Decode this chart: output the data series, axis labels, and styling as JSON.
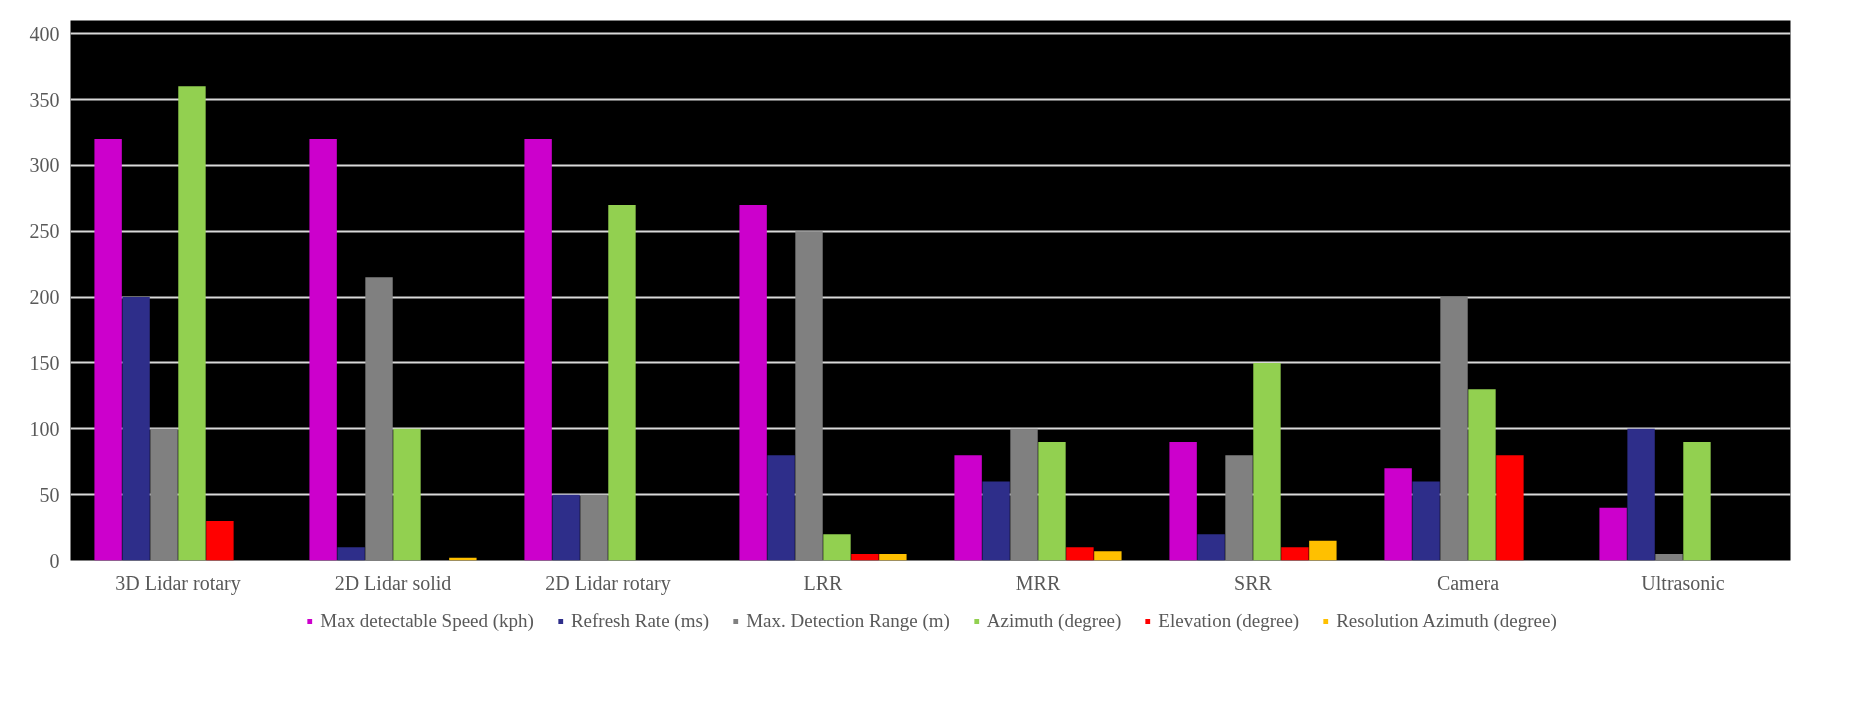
{
  "chart_data": {
    "type": "bar",
    "categories": [
      "3D Lidar rotary",
      "2D Lidar solid",
      "2D Lidar rotary",
      "LRR",
      "MRR",
      "SRR",
      "Camera",
      "Ultrasonic"
    ],
    "series": [
      {
        "name": "Max detectable Speed (kph)",
        "color": "#cc00cc",
        "values": [
          320,
          320,
          320,
          270,
          80,
          90,
          70,
          40
        ]
      },
      {
        "name": "Refresh Rate (ms)",
        "color": "#2e2e8a",
        "values": [
          200,
          10,
          50,
          80,
          60,
          20,
          60,
          100
        ]
      },
      {
        "name": "Max. Detection Range (m)",
        "color": "#808080",
        "values": [
          100,
          215,
          50,
          250,
          100,
          80,
          200,
          5
        ]
      },
      {
        "name": "Azimuth (degree)",
        "color": "#92d050",
        "values": [
          360,
          100,
          270,
          20,
          90,
          150,
          130,
          90
        ]
      },
      {
        "name": "Elevation (degree)",
        "color": "#ff0000",
        "values": [
          30,
          0,
          0,
          5,
          10,
          10,
          80,
          0
        ]
      },
      {
        "name": "Resolution Azimuth (degree)",
        "color": "#ffc000",
        "values": [
          0,
          2,
          0,
          5,
          7,
          15,
          null,
          0
        ]
      }
    ],
    "ylim": [
      0,
      410
    ],
    "yticks": [
      0,
      50,
      100,
      150,
      200,
      250,
      300,
      350,
      400
    ],
    "grid": "y",
    "legend": "bottom"
  }
}
